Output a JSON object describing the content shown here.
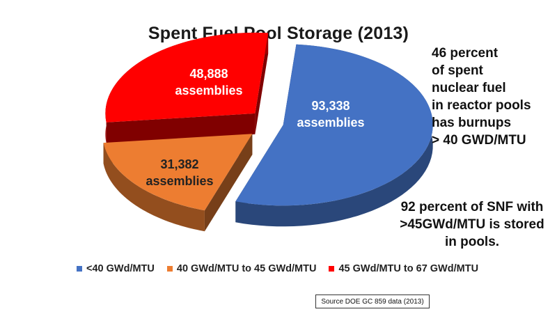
{
  "chart_data": {
    "type": "pie",
    "title": "Spent Fuel Pool Storage (2013)",
    "categories": [
      "<40 GWd/MTU",
      "40 GWd/MTU to 45 GWd/MTU",
      "45 GWd/MTU to 67 GWd/MTU"
    ],
    "values": [
      93338,
      31382,
      48888
    ],
    "slice_labels": [
      {
        "value": "93,338",
        "unit": "assemblies"
      },
      {
        "value": "31,382",
        "unit": "assemblies"
      },
      {
        "value": "48,888",
        "unit": "assemblies"
      }
    ],
    "colors": [
      "#4472c4",
      "#ed7d31",
      "#ff0000"
    ],
    "legend_position": "bottom",
    "style": "3d-exploded"
  },
  "annotations": {
    "top_right": [
      "46 percent",
      "of spent",
      "nuclear fuel",
      "in reactor pools",
      "has burnups",
      "> 40 GWD/MTU"
    ],
    "bottom_right": [
      "92 percent of SNF with",
      ">45GWd/MTU is stored",
      "in pools."
    ]
  },
  "source": "Source DOE GC 859 data (2013)"
}
